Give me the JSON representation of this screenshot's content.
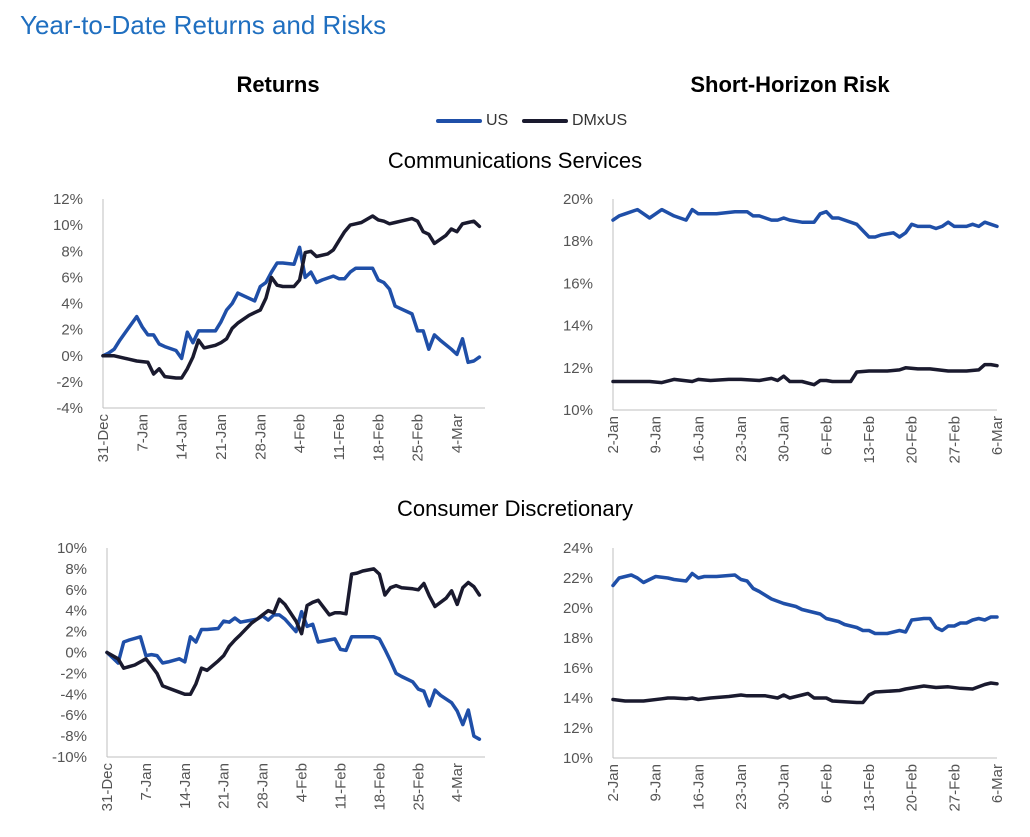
{
  "title": "Year-to-Date Returns and Risks",
  "columns": {
    "left": "Returns",
    "right": "Short-Horizon Risk"
  },
  "legend": [
    {
      "name": "US",
      "color": "#1f4fa8"
    },
    {
      "name": "DMxUS",
      "color": "#1a1a2e"
    }
  ],
  "sectors": [
    "Communications Services",
    "Consumer Discretionary"
  ],
  "chart_data": [
    {
      "type": "line",
      "panel": "Communications Services — Returns",
      "title": "",
      "ylim": [
        -4,
        12
      ],
      "yticks": [
        -4,
        -2,
        0,
        2,
        4,
        6,
        8,
        10,
        12
      ],
      "ytick_labels": [
        "-4%",
        "-2%",
        "0%",
        "2%",
        "4%",
        "6%",
        "8%",
        "10%",
        "12%"
      ],
      "x_tick_labels": [
        "31-Dec",
        "7-Jan",
        "14-Jan",
        "21-Jan",
        "28-Jan",
        "4-Feb",
        "11-Feb",
        "18-Feb",
        "25-Feb",
        "4-Mar"
      ],
      "x_tick_days": [
        0,
        7,
        14,
        21,
        28,
        35,
        42,
        49,
        56,
        63
      ],
      "xlim": [
        0,
        68
      ],
      "series": [
        {
          "name": "US",
          "x": [
            0,
            1,
            2,
            3,
            4,
            6,
            7,
            8,
            9,
            10,
            11,
            13,
            14,
            15,
            16,
            17,
            18,
            20,
            21,
            22,
            23,
            24,
            25,
            27,
            28,
            29,
            30,
            31,
            32,
            34,
            35,
            36,
            37,
            38,
            39,
            41,
            42,
            43,
            44,
            45,
            46,
            48,
            49,
            50,
            51,
            52,
            53,
            55,
            56,
            57,
            58,
            59,
            60,
            62,
            63,
            64,
            65,
            66,
            67
          ],
          "y": [
            0,
            0.2,
            0.5,
            1.2,
            1.8,
            3.0,
            2.2,
            1.6,
            1.6,
            0.9,
            0.7,
            0.4,
            -0.2,
            1.8,
            1.0,
            1.9,
            1.9,
            1.9,
            2.6,
            3.5,
            4.0,
            4.8,
            4.6,
            4.2,
            5.3,
            5.6,
            6.4,
            7.1,
            7.1,
            7.0,
            8.3,
            6.0,
            6.4,
            5.6,
            5.8,
            6.1,
            5.9,
            5.9,
            6.4,
            6.7,
            6.7,
            6.7,
            5.8,
            5.6,
            5.1,
            3.8,
            3.6,
            3.2,
            1.9,
            1.9,
            0.5,
            1.6,
            1.2,
            0.5,
            0.1,
            1.3,
            -0.5,
            -0.4,
            -0.1
          ]
        },
        {
          "name": "DMxUS",
          "x": [
            0,
            2,
            4,
            6,
            8,
            9,
            10,
            11,
            13,
            14,
            15,
            16,
            17,
            18,
            20,
            21,
            22,
            23,
            24,
            26,
            27,
            28,
            29,
            30,
            31,
            32,
            34,
            35,
            36,
            37,
            38,
            40,
            41,
            42,
            43,
            44,
            45,
            46,
            48,
            49,
            50,
            51,
            52,
            53,
            55,
            56,
            57,
            58,
            59,
            61,
            62,
            63,
            64,
            65,
            66,
            67
          ],
          "y": [
            0,
            0,
            -0.2,
            -0.4,
            -0.5,
            -1.4,
            -1.0,
            -1.6,
            -1.7,
            -1.7,
            -1.0,
            -0.1,
            1.2,
            0.6,
            0.8,
            1.0,
            1.3,
            2.1,
            2.5,
            3.1,
            3.3,
            3.5,
            4.4,
            6.0,
            5.4,
            5.3,
            5.3,
            5.8,
            7.9,
            8.0,
            7.6,
            7.8,
            8.1,
            8.8,
            9.5,
            10.0,
            10.1,
            10.2,
            10.7,
            10.4,
            10.3,
            10.1,
            10.2,
            10.3,
            10.5,
            10.3,
            9.5,
            9.3,
            8.6,
            9.2,
            9.7,
            9.5,
            10.1,
            10.2,
            10.3,
            9.9
          ]
        }
      ]
    },
    {
      "type": "line",
      "panel": "Communications Services — Short-Horizon Risk",
      "title": "",
      "ylim": [
        10,
        20
      ],
      "yticks": [
        10,
        12,
        14,
        16,
        18,
        20
      ],
      "ytick_labels": [
        "10%",
        "12%",
        "14%",
        "16%",
        "18%",
        "20%"
      ],
      "x_tick_labels": [
        "2-Jan",
        "9-Jan",
        "16-Jan",
        "23-Jan",
        "30-Jan",
        "6-Feb",
        "13-Feb",
        "20-Feb",
        "27-Feb",
        "6-Mar"
      ],
      "x_tick_days": [
        0,
        7,
        14,
        21,
        28,
        35,
        42,
        49,
        56,
        63
      ],
      "xlim": [
        0,
        63
      ],
      "series": [
        {
          "name": "US",
          "x": [
            0,
            1,
            2,
            4,
            6,
            7,
            8,
            10,
            12,
            13,
            14,
            15,
            16,
            17,
            20,
            21,
            22,
            23,
            24,
            26,
            27,
            28,
            29,
            31,
            33,
            34,
            35,
            36,
            37,
            40,
            41,
            42,
            43,
            44,
            46,
            47,
            48,
            49,
            50,
            52,
            53,
            54,
            55,
            56,
            57,
            58,
            59,
            60,
            61,
            62,
            63
          ],
          "y": [
            19.0,
            19.2,
            19.3,
            19.5,
            19.1,
            19.3,
            19.5,
            19.2,
            19.0,
            19.5,
            19.3,
            19.3,
            19.3,
            19.3,
            19.4,
            19.4,
            19.4,
            19.2,
            19.2,
            19.0,
            19.0,
            19.1,
            19.0,
            18.9,
            18.9,
            19.3,
            19.4,
            19.1,
            19.1,
            18.8,
            18.5,
            18.2,
            18.2,
            18.3,
            18.4,
            18.2,
            18.4,
            18.8,
            18.7,
            18.7,
            18.6,
            18.7,
            18.9,
            18.7,
            18.7,
            18.7,
            18.8,
            18.7,
            18.9,
            18.8,
            18.7
          ]
        },
        {
          "name": "DMxUS",
          "x": [
            0,
            3,
            6,
            8,
            10,
            13,
            14,
            16,
            19,
            21,
            24,
            26,
            27,
            28,
            29,
            31,
            33,
            34,
            35,
            36,
            39,
            40,
            42,
            43,
            45,
            47,
            48,
            50,
            52,
            55,
            58,
            60,
            61,
            62,
            63
          ],
          "y": [
            11.35,
            11.35,
            11.35,
            11.3,
            11.45,
            11.35,
            11.45,
            11.4,
            11.45,
            11.45,
            11.4,
            11.5,
            11.4,
            11.6,
            11.35,
            11.35,
            11.2,
            11.4,
            11.4,
            11.35,
            11.35,
            11.8,
            11.85,
            11.85,
            11.85,
            11.9,
            12.0,
            11.95,
            11.95,
            11.85,
            11.85,
            11.9,
            12.15,
            12.15,
            12.1
          ]
        }
      ]
    },
    {
      "type": "line",
      "panel": "Consumer Discretionary — Returns",
      "title": "",
      "ylim": [
        -10,
        10
      ],
      "yticks": [
        -10,
        -8,
        -6,
        -4,
        -2,
        0,
        2,
        4,
        6,
        8,
        10
      ],
      "ytick_labels": [
        "-10%",
        "-8%",
        "-6%",
        "-4%",
        "-2%",
        "0%",
        "2%",
        "4%",
        "6%",
        "8%",
        "10%"
      ],
      "x_tick_labels": [
        "31-Dec",
        "7-Jan",
        "14-Jan",
        "21-Jan",
        "28-Jan",
        "4-Feb",
        "11-Feb",
        "18-Feb",
        "25-Feb",
        "4-Mar"
      ],
      "x_tick_days": [
        0,
        7,
        14,
        21,
        28,
        35,
        42,
        49,
        56,
        63
      ],
      "xlim": [
        0,
        68
      ],
      "series": [
        {
          "name": "US",
          "x": [
            0,
            1,
            2,
            3,
            4,
            6,
            7,
            8,
            9,
            10,
            11,
            13,
            14,
            15,
            16,
            17,
            18,
            20,
            21,
            22,
            23,
            24,
            25,
            27,
            28,
            29,
            30,
            31,
            32,
            34,
            35,
            36,
            37,
            38,
            39,
            41,
            42,
            43,
            44,
            45,
            46,
            48,
            49,
            50,
            51,
            52,
            53,
            55,
            56,
            57,
            58,
            59,
            60,
            62,
            63,
            64,
            65,
            66,
            67
          ],
          "y": [
            0,
            -0.5,
            -1.0,
            1.0,
            1.2,
            1.5,
            -0.3,
            -0.2,
            -0.3,
            -1.0,
            -0.9,
            -0.6,
            -0.9,
            1.5,
            1.0,
            2.2,
            2.2,
            2.3,
            3.0,
            2.9,
            3.3,
            2.9,
            3.0,
            3.2,
            3.5,
            3.1,
            3.6,
            3.6,
            3.2,
            2.0,
            3.9,
            2.5,
            2.7,
            1.0,
            1.1,
            1.3,
            0.3,
            0.2,
            1.5,
            1.5,
            1.5,
            1.5,
            1.3,
            0.3,
            -0.8,
            -2.0,
            -2.3,
            -2.8,
            -3.5,
            -3.7,
            -5.1,
            -3.6,
            -4.1,
            -4.8,
            -5.6,
            -6.9,
            -5.5,
            -8.0,
            -8.3
          ]
        },
        {
          "name": "DMxUS",
          "x": [
            0,
            2,
            3,
            5,
            7,
            8,
            9,
            10,
            11,
            13,
            14,
            15,
            16,
            17,
            18,
            20,
            21,
            22,
            23,
            24,
            26,
            27,
            28,
            29,
            30,
            31,
            32,
            34,
            35,
            36,
            37,
            38,
            40,
            41,
            42,
            43,
            44,
            45,
            46,
            48,
            49,
            50,
            51,
            52,
            53,
            55,
            56,
            57,
            58,
            59,
            61,
            62,
            63,
            64,
            65,
            66,
            67
          ],
          "y": [
            0,
            -0.6,
            -1.5,
            -1.2,
            -0.6,
            -1.3,
            -2.0,
            -3.2,
            -3.4,
            -3.8,
            -4.0,
            -4.0,
            -3.0,
            -1.5,
            -1.7,
            -0.8,
            -0.3,
            0.6,
            1.2,
            1.7,
            2.8,
            3.2,
            3.6,
            4.0,
            3.8,
            5.1,
            4.6,
            3.0,
            1.8,
            4.5,
            4.8,
            5.0,
            3.6,
            3.8,
            3.8,
            3.7,
            7.5,
            7.6,
            7.8,
            8.0,
            7.5,
            5.5,
            6.2,
            6.4,
            6.2,
            6.1,
            6.0,
            6.6,
            5.4,
            4.4,
            5.2,
            5.9,
            4.6,
            6.2,
            6.7,
            6.3,
            5.5
          ]
        }
      ]
    },
    {
      "type": "line",
      "panel": "Consumer Discretionary — Short-Horizon Risk",
      "title": "",
      "ylim": [
        10,
        24
      ],
      "yticks": [
        10,
        12,
        14,
        16,
        18,
        20,
        22,
        24
      ],
      "ytick_labels": [
        "10%",
        "12%",
        "14%",
        "16%",
        "18%",
        "20%",
        "22%",
        "24%"
      ],
      "x_tick_labels": [
        "2-Jan",
        "9-Jan",
        "16-Jan",
        "23-Jan",
        "30-Jan",
        "6-Feb",
        "13-Feb",
        "20-Feb",
        "27-Feb",
        "6-Mar"
      ],
      "x_tick_days": [
        0,
        7,
        14,
        21,
        28,
        35,
        42,
        49,
        56,
        63
      ],
      "xlim": [
        0,
        63
      ],
      "series": [
        {
          "name": "US",
          "x": [
            0,
            1,
            3,
            4,
            5,
            6,
            7,
            9,
            10,
            12,
            13,
            14,
            15,
            17,
            20,
            21,
            22,
            23,
            24,
            26,
            28,
            29,
            30,
            31,
            33,
            34,
            35,
            37,
            38,
            40,
            41,
            42,
            43,
            45,
            47,
            48,
            49,
            51,
            52,
            53,
            54,
            55,
            56,
            57,
            58,
            59,
            60,
            61,
            62,
            63
          ],
          "y": [
            21.5,
            22.0,
            22.2,
            22.0,
            21.7,
            21.9,
            22.1,
            22.0,
            21.9,
            21.8,
            22.3,
            22.0,
            22.1,
            22.1,
            22.2,
            21.9,
            21.8,
            21.3,
            21.1,
            20.6,
            20.3,
            20.2,
            20.1,
            19.9,
            19.7,
            19.6,
            19.3,
            19.1,
            18.9,
            18.7,
            18.5,
            18.5,
            18.3,
            18.3,
            18.5,
            18.4,
            19.2,
            19.3,
            19.3,
            18.7,
            18.5,
            18.8,
            18.8,
            19.0,
            19.0,
            19.2,
            19.3,
            19.2,
            19.4,
            19.4
          ]
        },
        {
          "name": "DMxUS",
          "x": [
            0,
            2,
            5,
            8,
            9,
            10,
            12,
            13,
            14,
            16,
            19,
            21,
            22,
            25,
            27,
            28,
            29,
            31,
            32,
            33,
            35,
            36,
            40,
            41,
            42,
            43,
            45,
            47,
            48,
            51,
            53,
            55,
            57,
            59,
            61,
            62,
            63
          ],
          "y": [
            13.9,
            13.8,
            13.8,
            13.95,
            14.0,
            14.0,
            13.95,
            14.0,
            13.9,
            14.0,
            14.1,
            14.2,
            14.15,
            14.15,
            14.0,
            14.2,
            14.0,
            14.2,
            14.3,
            14.0,
            14.0,
            13.8,
            13.7,
            13.7,
            14.2,
            14.4,
            14.45,
            14.5,
            14.6,
            14.8,
            14.7,
            14.75,
            14.65,
            14.6,
            14.9,
            15.0,
            14.95
          ]
        }
      ]
    }
  ]
}
